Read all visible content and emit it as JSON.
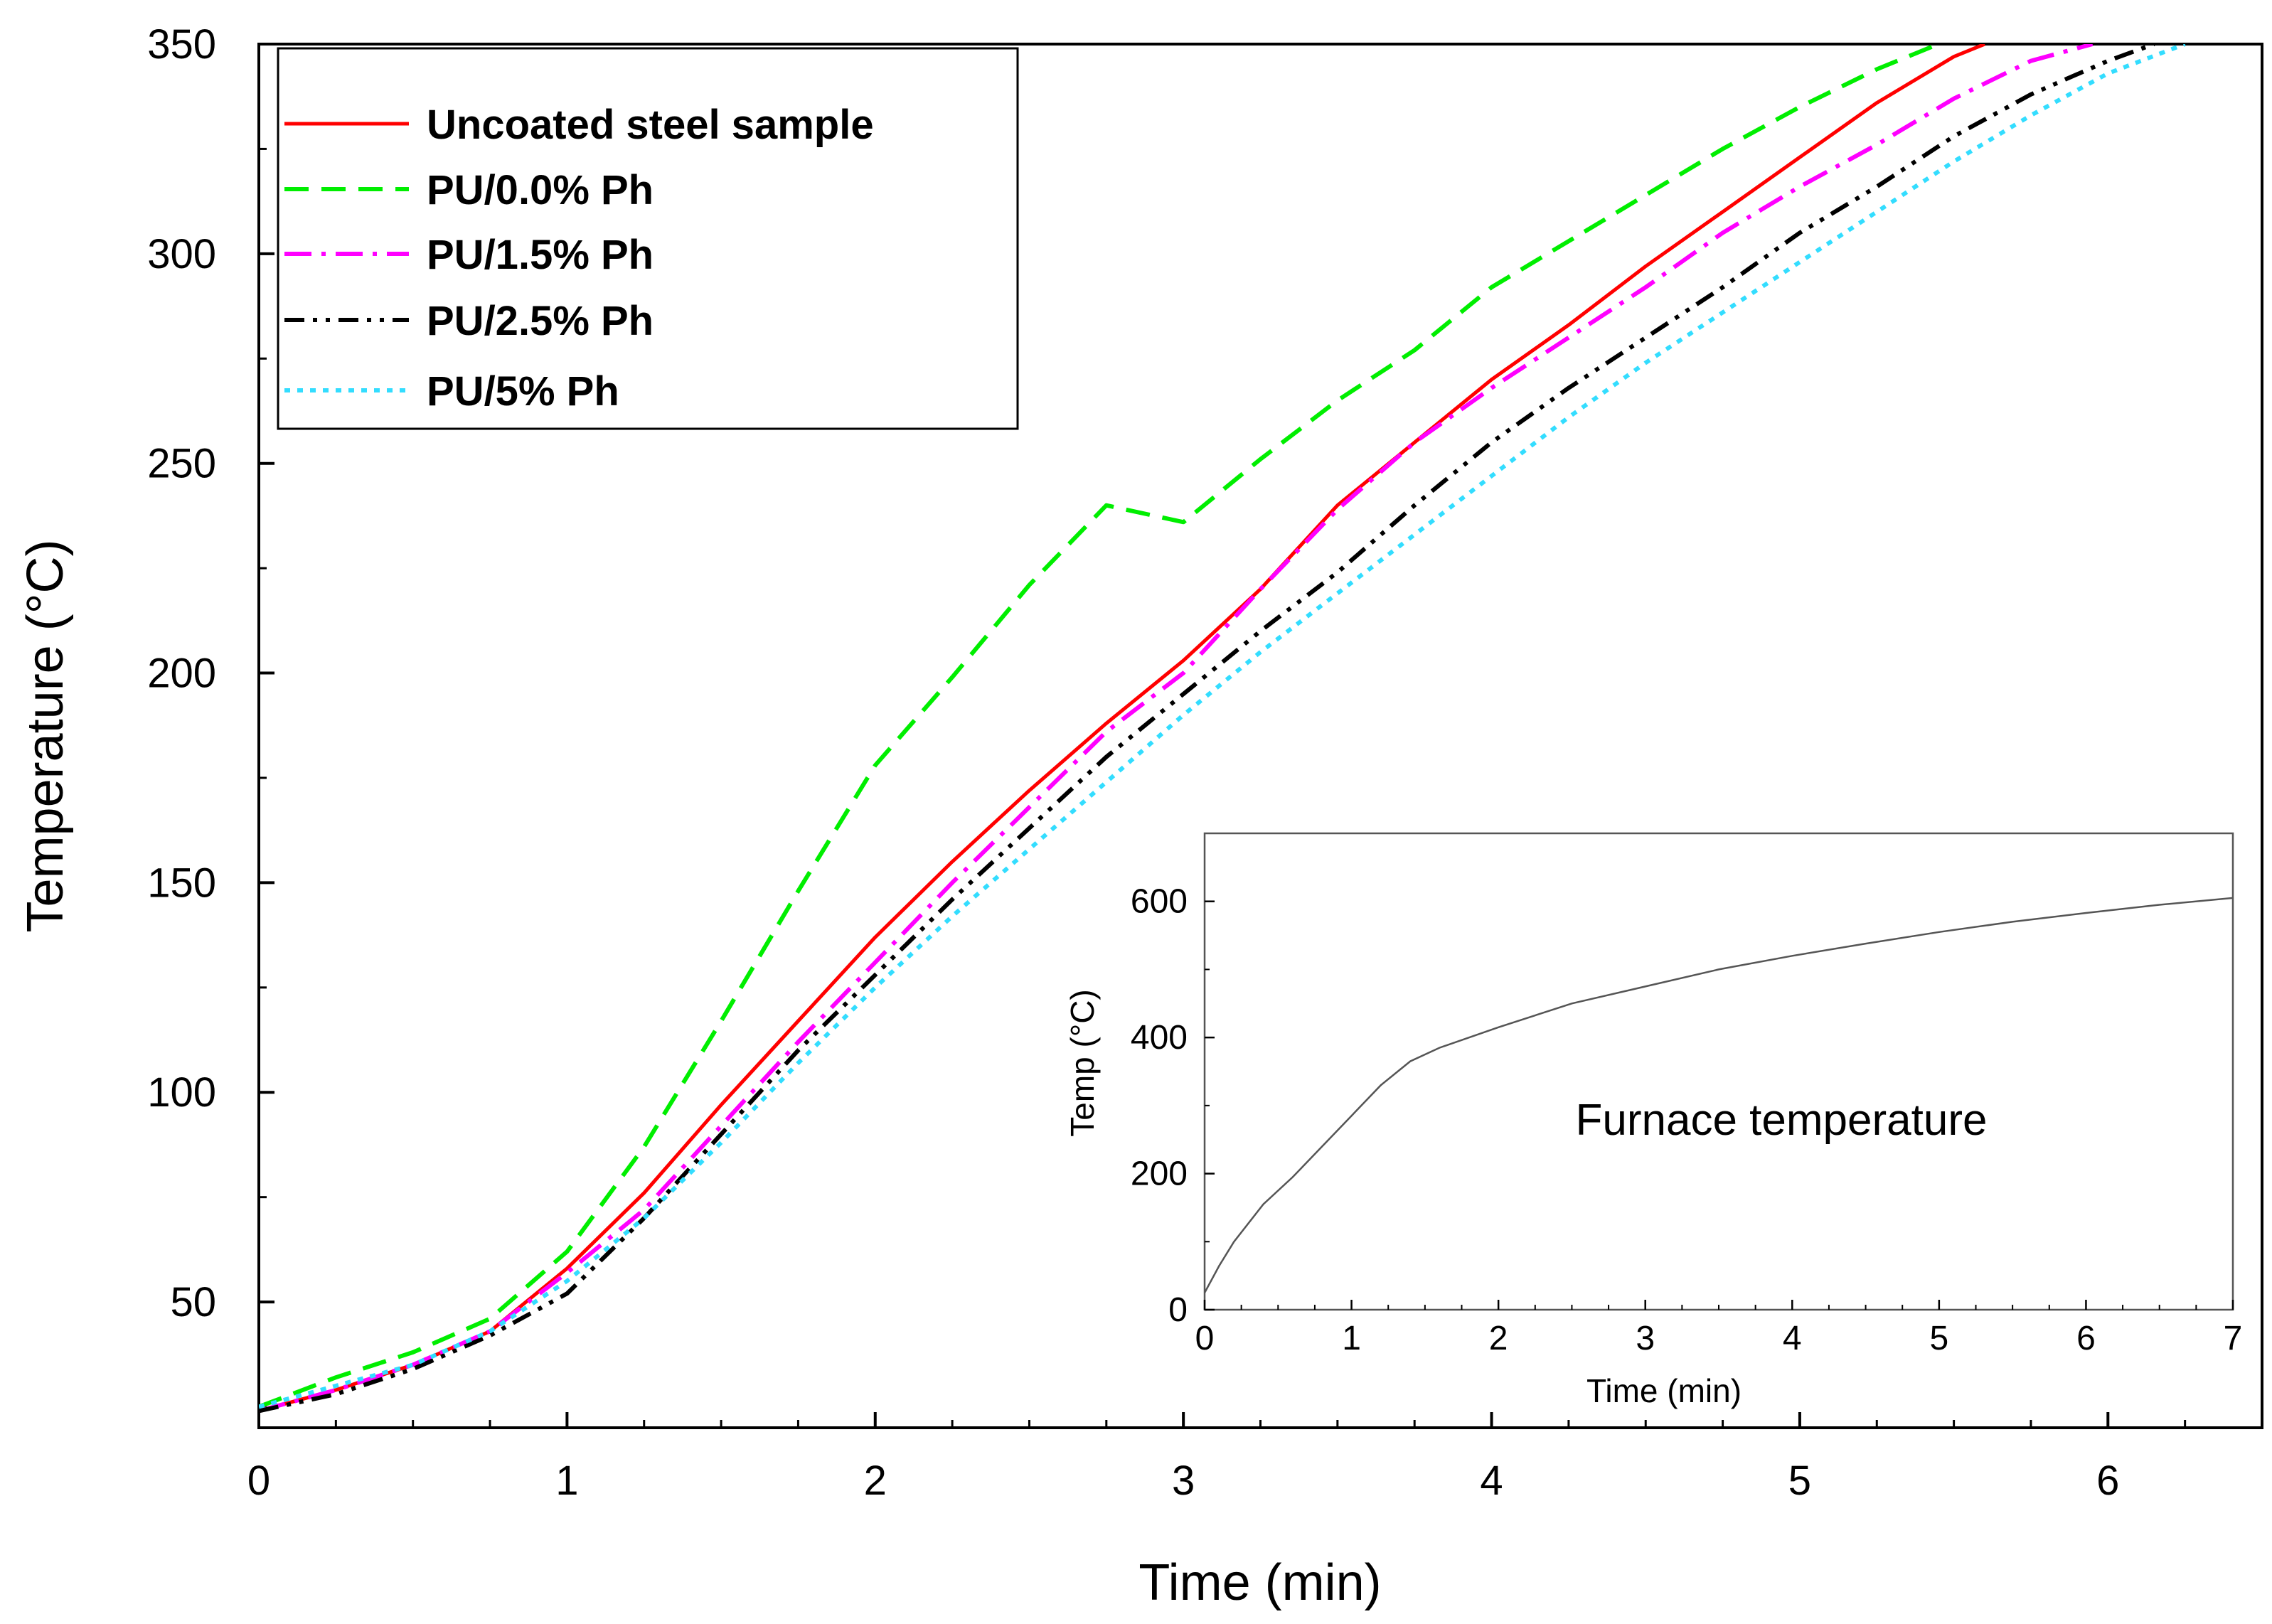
{
  "chart_data": [
    {
      "type": "line",
      "title": "",
      "xlabel": "Time (min)",
      "ylabel": "Temperature (°C)",
      "xlim": [
        0,
        6.5
      ],
      "ylim": [
        20,
        350
      ],
      "xticks": [
        "0",
        "1",
        "2",
        "3",
        "4",
        "5",
        "6"
      ],
      "yticks": [
        "50",
        "100",
        "150",
        "200",
        "250",
        "300",
        "350"
      ],
      "legend_position": "top-left",
      "series": [
        {
          "name": "Uncoated steel sample",
          "color": "#ff0000",
          "style": "solid",
          "x": [
            0,
            0.25,
            0.5,
            0.75,
            1.0,
            1.25,
            1.5,
            1.75,
            2.0,
            2.25,
            2.5,
            2.75,
            3.0,
            3.25,
            3.5,
            3.75,
            4.0,
            4.25,
            4.5,
            4.75,
            5.0,
            5.25,
            5.5,
            5.6
          ],
          "y": [
            24,
            29,
            35,
            43,
            58,
            76,
            97,
            117,
            137,
            155,
            172,
            188,
            203,
            220,
            240,
            255,
            270,
            283,
            297,
            310,
            323,
            336,
            347,
            350
          ]
        },
        {
          "name": "PU/0.0% Ph",
          "color": "#00ee00",
          "style": "dashed",
          "x": [
            0,
            0.25,
            0.5,
            0.75,
            1.0,
            1.25,
            1.5,
            1.75,
            2.0,
            2.25,
            2.5,
            2.75,
            3.0,
            3.25,
            3.5,
            3.75,
            4.0,
            4.25,
            4.5,
            4.75,
            5.0,
            5.25,
            5.45
          ],
          "y": [
            25,
            32,
            38,
            46,
            62,
            87,
            117,
            148,
            178,
            199,
            221,
            240,
            236,
            251,
            265,
            277,
            292,
            303,
            314,
            325,
            335,
            344,
            350
          ]
        },
        {
          "name": "PU/1.5% Ph",
          "color": "#ff00ff",
          "style": "dash-dot",
          "x": [
            0,
            0.25,
            0.5,
            0.75,
            1.0,
            1.25,
            1.5,
            1.75,
            2.0,
            2.25,
            2.5,
            2.75,
            3.0,
            3.25,
            3.5,
            3.75,
            4.0,
            4.25,
            4.5,
            4.75,
            5.0,
            5.25,
            5.5,
            5.75,
            5.95
          ],
          "y": [
            24,
            29,
            35,
            43,
            57,
            72,
            92,
            112,
            131,
            150,
            168,
            186,
            200,
            220,
            239,
            255,
            268,
            280,
            292,
            305,
            316,
            326,
            337,
            346,
            350
          ]
        },
        {
          "name": "PU/2.5% Ph",
          "color": "#000000",
          "style": "dash-dot-dot",
          "x": [
            0,
            0.25,
            0.5,
            0.75,
            1.0,
            1.25,
            1.5,
            1.75,
            2.0,
            2.25,
            2.5,
            2.75,
            3.0,
            3.25,
            3.5,
            3.75,
            4.0,
            4.25,
            4.5,
            4.75,
            5.0,
            5.25,
            5.5,
            5.75,
            6.0,
            6.15
          ],
          "y": [
            24,
            28,
            34,
            42,
            52,
            70,
            90,
            110,
            128,
            146,
            163,
            180,
            195,
            210,
            224,
            240,
            255,
            268,
            280,
            292,
            305,
            316,
            328,
            338,
            346,
            350
          ]
        },
        {
          "name": "PU/5% Ph",
          "color": "#33ddff",
          "style": "dotted",
          "x": [
            0,
            0.25,
            0.5,
            0.75,
            1.0,
            1.25,
            1.5,
            1.75,
            2.0,
            2.25,
            2.5,
            2.75,
            3.0,
            3.25,
            3.5,
            3.75,
            4.0,
            4.25,
            4.5,
            4.75,
            5.0,
            5.25,
            5.5,
            5.75,
            6.0,
            6.25
          ],
          "y": [
            25,
            30,
            35,
            43,
            55,
            70,
            88,
            107,
            125,
            142,
            158,
            174,
            190,
            205,
            219,
            233,
            247,
            261,
            274,
            286,
            298,
            310,
            322,
            333,
            343,
            350
          ]
        }
      ]
    },
    {
      "type": "line",
      "title": "",
      "xlabel": "Time (min)",
      "ylabel": "Temp (°C)",
      "xlim": [
        0,
        7
      ],
      "ylim": [
        0,
        700
      ],
      "xticks": [
        "0",
        "1",
        "2",
        "3",
        "4",
        "5",
        "6",
        "7"
      ],
      "yticks": [
        "0",
        "200",
        "400",
        "600"
      ],
      "annotation": "Furnace temperature",
      "series": [
        {
          "name": "Furnace temperature",
          "color": "#555555",
          "style": "solid",
          "x": [
            0,
            0.1,
            0.2,
            0.4,
            0.6,
            0.8,
            1.0,
            1.2,
            1.4,
            1.6,
            2.0,
            2.5,
            3.0,
            3.5,
            4.0,
            4.5,
            5.0,
            5.5,
            6.0,
            6.5,
            7.0
          ],
          "y": [
            25,
            65,
            100,
            155,
            195,
            240,
            285,
            330,
            365,
            385,
            415,
            450,
            475,
            500,
            520,
            538,
            555,
            570,
            583,
            595,
            605
          ]
        }
      ]
    }
  ]
}
